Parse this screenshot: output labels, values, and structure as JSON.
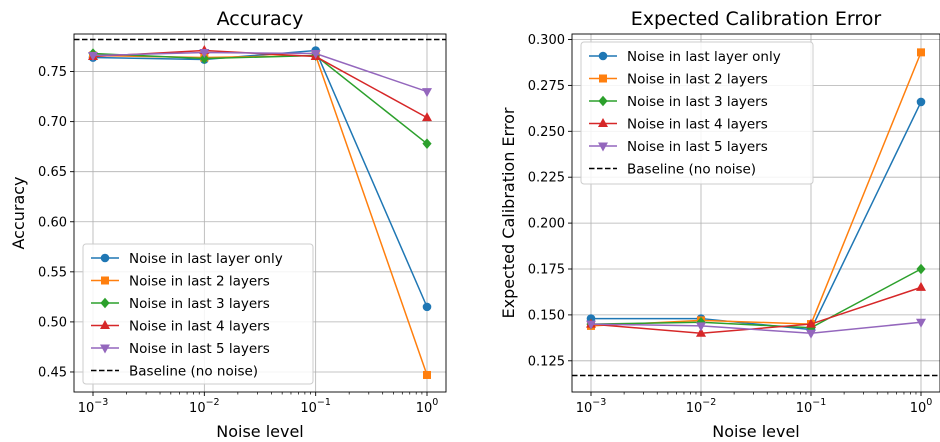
{
  "chart_data": [
    {
      "type": "line",
      "title": "Accuracy",
      "xlabel": "Noise level",
      "ylabel": "Accuracy",
      "x": [
        0.001,
        0.01,
        0.1,
        1
      ],
      "x_scale": "log",
      "xticks": [
        {
          "base": "10",
          "exp": "−3"
        },
        {
          "base": "10",
          "exp": "−2"
        },
        {
          "base": "10",
          "exp": "−1"
        },
        {
          "base": "10",
          "exp": "0"
        }
      ],
      "ylim": [
        0.43,
        0.7875
      ],
      "yticks": [
        0.45,
        0.5,
        0.55,
        0.6,
        0.65,
        0.7,
        0.75
      ],
      "ytick_labels": [
        "0.45",
        "0.50",
        "0.55",
        "0.60",
        "0.65",
        "0.70",
        "0.75"
      ],
      "grid": true,
      "legend_position": "lower-left",
      "series": [
        {
          "name": "Noise in last layer only",
          "color": "#1f77b4",
          "marker": "circle",
          "values": [
            0.764,
            0.762,
            0.771,
            0.515
          ]
        },
        {
          "name": "Noise in last 2 layers",
          "color": "#ff7f0e",
          "marker": "square",
          "values": [
            0.766,
            0.764,
            0.766,
            0.447
          ]
        },
        {
          "name": "Noise in last 3 layers",
          "color": "#2ca02c",
          "marker": "diamond",
          "values": [
            0.768,
            0.763,
            0.766,
            0.678
          ]
        },
        {
          "name": "Noise in last 4 layers",
          "color": "#d62728",
          "marker": "triangle-up",
          "values": [
            0.765,
            0.771,
            0.765,
            0.704
          ]
        },
        {
          "name": "Noise in last 5 layers",
          "color": "#9467bd",
          "marker": "triangle-down",
          "values": [
            0.766,
            0.769,
            0.768,
            0.73
          ]
        }
      ],
      "baseline": {
        "name": "Baseline (no noise)",
        "value": 0.782,
        "color": "#000000",
        "style": "dashed"
      }
    },
    {
      "type": "line",
      "title": "Expected Calibration Error",
      "xlabel": "Noise level",
      "ylabel": "Expected Calibration Error",
      "x": [
        0.001,
        0.01,
        0.1,
        1
      ],
      "x_scale": "log",
      "xticks": [
        {
          "base": "10",
          "exp": "−3"
        },
        {
          "base": "10",
          "exp": "−2"
        },
        {
          "base": "10",
          "exp": "−1"
        },
        {
          "base": "10",
          "exp": "0"
        }
      ],
      "ylim": [
        0.108,
        0.303
      ],
      "yticks": [
        0.125,
        0.15,
        0.175,
        0.2,
        0.225,
        0.25,
        0.275,
        0.3
      ],
      "ytick_labels": [
        "0.125",
        "0.150",
        "0.175",
        "0.200",
        "0.225",
        "0.250",
        "0.275",
        "0.300"
      ],
      "grid": true,
      "legend_position": "upper-left",
      "series": [
        {
          "name": "Noise in last layer only",
          "color": "#1f77b4",
          "marker": "circle",
          "values": [
            0.148,
            0.148,
            0.142,
            0.266
          ]
        },
        {
          "name": "Noise in last 2 layers",
          "color": "#ff7f0e",
          "marker": "square",
          "values": [
            0.144,
            0.147,
            0.145,
            0.293
          ]
        },
        {
          "name": "Noise in last 3 layers",
          "color": "#2ca02c",
          "marker": "diamond",
          "values": [
            0.145,
            0.146,
            0.143,
            0.175
          ]
        },
        {
          "name": "Noise in last 4 layers",
          "color": "#d62728",
          "marker": "triangle-up",
          "values": [
            0.145,
            0.14,
            0.145,
            0.165
          ]
        },
        {
          "name": "Noise in last 5 layers",
          "color": "#9467bd",
          "marker": "triangle-down",
          "values": [
            0.145,
            0.144,
            0.14,
            0.146
          ]
        }
      ],
      "baseline": {
        "name": "Baseline (no noise)",
        "value": 0.117,
        "color": "#000000",
        "style": "dashed"
      }
    }
  ]
}
